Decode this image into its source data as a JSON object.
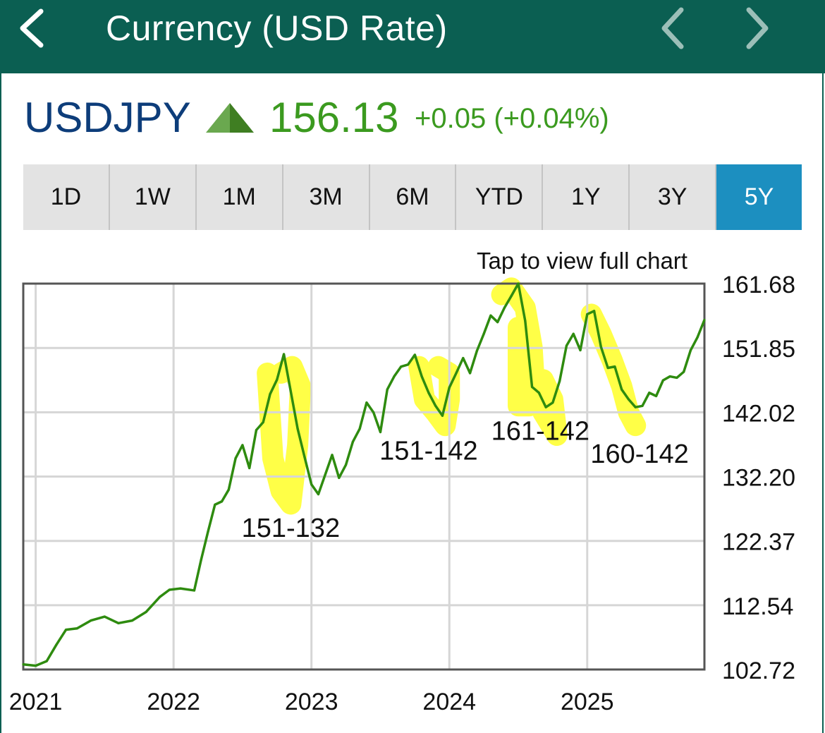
{
  "header": {
    "title": "Currency (USD Rate)",
    "back_icon": "chevron-left-icon",
    "prev_icon": "chevron-left-icon",
    "next_icon": "chevron-right-icon",
    "bg_color": "#0b5f52"
  },
  "quote": {
    "symbol": "USDJPY",
    "price": "156.13",
    "change": "+0.05 (+0.04%)",
    "direction_icon": "triangle-up-icon",
    "up_color": "#3b9a1f",
    "symbol_color": "#0d3d7a"
  },
  "ranges": {
    "items": [
      "1D",
      "1W",
      "1M",
      "3M",
      "6M",
      "YTD",
      "1Y",
      "3Y",
      "5Y"
    ],
    "selected": "5Y",
    "active_color": "#1c8fc0"
  },
  "chart_hint": "Tap to view full chart",
  "chart_data": {
    "type": "line",
    "title": "",
    "xlabel": "",
    "ylabel": "",
    "x_ticks": [
      "2021",
      "2022",
      "2023",
      "2024",
      "2025"
    ],
    "y_ticks": [
      "161.68",
      "151.85",
      "142.02",
      "132.20",
      "122.37",
      "112.54",
      "102.72"
    ],
    "ylim": [
      102.72,
      161.68
    ],
    "xlim": [
      2020.91,
      2025.85
    ],
    "grid": true,
    "series": [
      {
        "color": "#2e8b0f",
        "x": [
          2020.91,
          2021.0,
          2021.08,
          2021.15,
          2021.22,
          2021.3,
          2021.4,
          2021.5,
          2021.6,
          2021.7,
          2021.8,
          2021.9,
          2021.97,
          2022.05,
          2022.15,
          2022.2,
          2022.25,
          2022.3,
          2022.35,
          2022.4,
          2022.45,
          2022.5,
          2022.55,
          2022.6,
          2022.65,
          2022.7,
          2022.75,
          2022.8,
          2022.85,
          2022.9,
          2022.95,
          2023.0,
          2023.05,
          2023.1,
          2023.15,
          2023.2,
          2023.25,
          2023.3,
          2023.35,
          2023.4,
          2023.45,
          2023.5,
          2023.55,
          2023.6,
          2023.65,
          2023.7,
          2023.75,
          2023.8,
          2023.85,
          2023.9,
          2023.95,
          2024.0,
          2024.05,
          2024.1,
          2024.15,
          2024.2,
          2024.25,
          2024.3,
          2024.35,
          2024.4,
          2024.45,
          2024.5,
          2024.55,
          2024.6,
          2024.65,
          2024.7,
          2024.75,
          2024.8,
          2024.85,
          2024.9,
          2024.95,
          2025.0,
          2025.05,
          2025.1,
          2025.15,
          2025.2,
          2025.25,
          2025.3,
          2025.35,
          2025.4,
          2025.45,
          2025.5,
          2025.55,
          2025.6,
          2025.65,
          2025.7,
          2025.75,
          2025.8,
          2025.85
        ],
        "values": [
          103.5,
          103.3,
          104.0,
          106.5,
          108.8,
          109.0,
          110.2,
          110.8,
          109.8,
          110.2,
          111.5,
          113.8,
          114.9,
          115.1,
          114.8,
          119.5,
          123.8,
          127.9,
          128.4,
          130.2,
          135.0,
          137.0,
          133.5,
          139.3,
          140.5,
          144.8,
          147.0,
          150.9,
          145.2,
          139.5,
          135.2,
          131.0,
          129.5,
          132.5,
          135.5,
          132.0,
          134.0,
          137.5,
          139.5,
          143.5,
          142.0,
          139.0,
          145.5,
          147.5,
          149.0,
          149.3,
          150.8,
          147.5,
          145.0,
          143.0,
          141.5,
          145.8,
          148.0,
          150.3,
          148.0,
          151.4,
          154.0,
          156.8,
          155.8,
          158.0,
          159.8,
          161.68,
          156.0,
          145.9,
          145.0,
          142.8,
          143.5,
          146.8,
          152.2,
          154.0,
          151.5,
          157.0,
          157.5,
          152.0,
          148.8,
          149.0,
          145.5,
          144.0,
          142.8,
          143.0,
          145.0,
          144.5,
          146.9,
          147.5,
          147.3,
          148.2,
          151.5,
          153.5,
          156.13
        ]
      }
    ],
    "annotations": [
      "151-132",
      "151-142",
      "161-142",
      "160-142"
    ],
    "highlight_color": "#ffff00"
  }
}
